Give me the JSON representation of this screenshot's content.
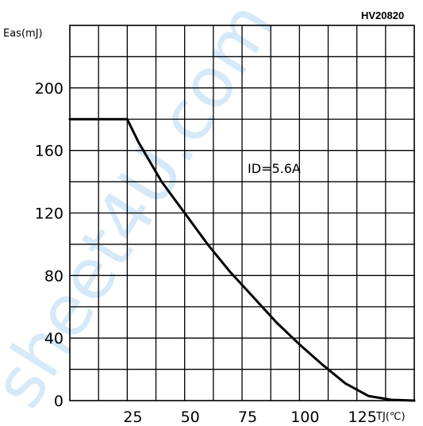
{
  "figure_code": "HV20820",
  "chart_data": {
    "type": "line",
    "ylabel": "Eas(mJ)",
    "xlabel": "TJ(℃)",
    "annotation": "ID=5.6A",
    "x_ticks": [
      "25",
      "50",
      "75",
      "100",
      "125"
    ],
    "y_ticks": [
      "0",
      "40",
      "80",
      "120",
      "160",
      "200"
    ],
    "xlim": [
      0,
      150
    ],
    "ylim": [
      0,
      240
    ],
    "grid": true,
    "series": [
      {
        "x": [
          0,
          10,
          20,
          25,
          30,
          40,
          50,
          60,
          70,
          80,
          90,
          100,
          110,
          120,
          125,
          130,
          140,
          150
        ],
        "y": [
          180,
          180,
          180,
          180,
          165,
          140,
          120,
          100,
          82,
          66,
          50,
          36,
          23,
          11,
          7,
          3,
          0.5,
          0
        ]
      }
    ]
  },
  "watermark": "sheet4U.com"
}
